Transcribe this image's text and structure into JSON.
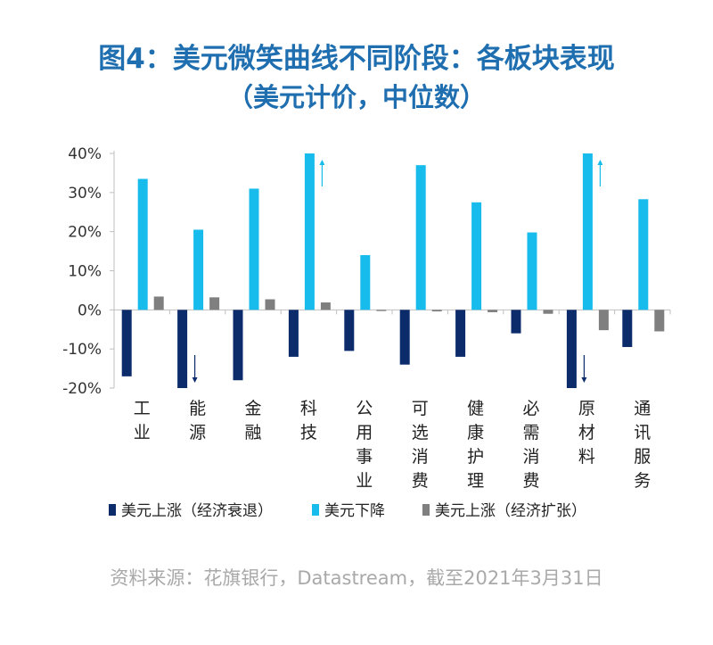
{
  "title_line1": "图4：美元微笑曲线不同阶段：各板块表现",
  "title_line2": "（美元计价，中位数）",
  "source": "资料来源：花旗银行，Datastream，截至2021年3月31日",
  "colors": {
    "series_dark": "#0c2b6b",
    "series_light": "#18bcec",
    "series_gray": "#7f7f7f",
    "title": "#1f6fb0",
    "axis": "#bfbfbf"
  },
  "chart_data": {
    "type": "bar",
    "categories": [
      "工业",
      "能源",
      "金融",
      "科技",
      "公用事业",
      "可选消费",
      "健康护理",
      "必需消费",
      "原材料",
      "通讯服务"
    ],
    "series": [
      {
        "name": "美元上涨（经济衰退）",
        "values": [
          -17,
          -20,
          -18,
          -12,
          -10.5,
          -14,
          -12,
          -6,
          -20,
          -9.5
        ]
      },
      {
        "name": "美元下降",
        "values": [
          33.5,
          20.5,
          31,
          40,
          14,
          37,
          27.5,
          19.8,
          40,
          28.3
        ]
      },
      {
        "name": "美元上涨（经济扩张）",
        "values": [
          3.4,
          3.2,
          2.7,
          1.9,
          -0.3,
          -0.4,
          -0.6,
          -1.0,
          -5.2,
          -5.5
        ]
      }
    ],
    "clipped_arrows": [
      {
        "category": "能源",
        "series": "美元上涨（经济衰退）",
        "direction": "down"
      },
      {
        "category": "科技",
        "series": "美元下降",
        "direction": "up"
      },
      {
        "category": "原材料",
        "series": "美元上涨（经济衰退）",
        "direction": "down"
      },
      {
        "category": "原材料",
        "series": "美元下降",
        "direction": "up"
      }
    ],
    "yticks": [
      "40%",
      "30%",
      "20%",
      "10%",
      "0%",
      "-10%",
      "-20%"
    ],
    "ylim": [
      -20,
      40
    ],
    "legend_position": "bottom",
    "grid": false
  }
}
